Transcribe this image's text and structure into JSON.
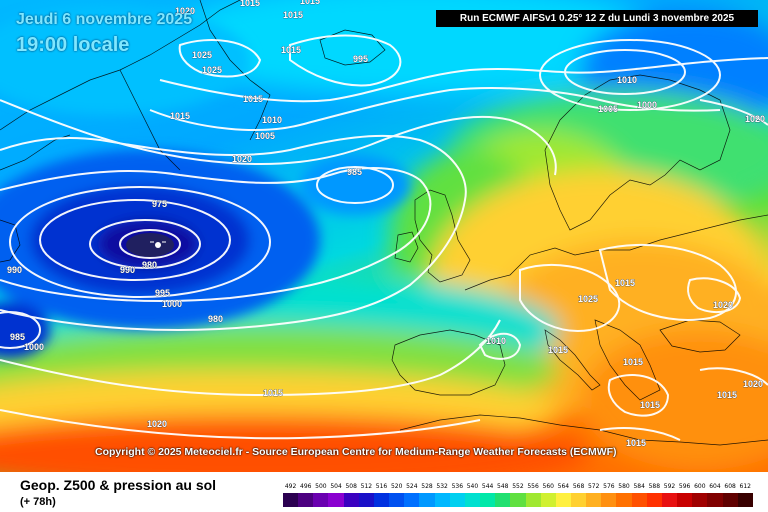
{
  "header": {
    "date": "Jeudi 6 novembre 2025",
    "time": "19:00 locale",
    "run": "Run ECMWF AIFSv1 0.25° 12 Z du Lundi 3 novembre 2025"
  },
  "copyright": "Copyright © 2025 Meteociel.fr - Source European Centre for Medium-Range Weather Forecasts (ECMWF)",
  "footer": {
    "title": "Geop. Z500 & pression au sol",
    "subtitle": "(+ 78h)"
  },
  "pressure_labels": [
    "1020",
    "1015",
    "1015",
    "1015",
    "1025",
    "1025",
    "1015",
    "1015",
    "1015",
    "1010",
    "1005",
    "1020",
    "995",
    "985",
    "975",
    "980",
    "990",
    "990",
    "995",
    "1000",
    "980",
    "985",
    "1000",
    "1010",
    "1005",
    "1000",
    "1020",
    "1015",
    "1025",
    "1020",
    "1010",
    "1015",
    "1015",
    "1020",
    "1015",
    "1015",
    "1015",
    "1020",
    "1015"
  ],
  "legend": {
    "values": [
      "492",
      "496",
      "500",
      "504",
      "508",
      "512",
      "516",
      "520",
      "524",
      "528",
      "532",
      "536",
      "540",
      "544",
      "548",
      "552",
      "556",
      "560",
      "564",
      "568",
      "572",
      "576",
      "580",
      "584",
      "588",
      "592",
      "596",
      "600",
      "604",
      "608",
      "612"
    ],
    "colors": [
      "#2b0050",
      "#4c0080",
      "#6a00b0",
      "#8a00d0",
      "#3a00c0",
      "#1a10c8",
      "#0030e0",
      "#0050f0",
      "#0070ff",
      "#0098ff",
      "#00b8ff",
      "#00d0f0",
      "#00e0d0",
      "#00e8a8",
      "#20e070",
      "#60e040",
      "#a0e830",
      "#d0f030",
      "#fff040",
      "#ffd030",
      "#ffb020",
      "#ff9010",
      "#ff7000",
      "#ff5000",
      "#ff3000",
      "#e81010",
      "#c80000",
      "#a00000",
      "#800000",
      "#600000",
      "#380000"
    ]
  }
}
